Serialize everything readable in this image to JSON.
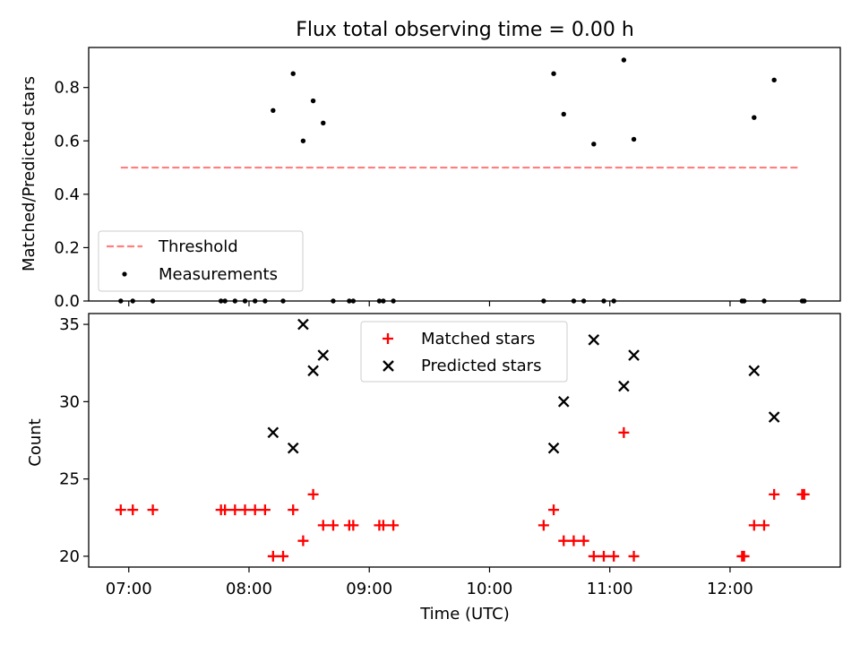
{
  "title": "Flux total observing time = 0.00 h",
  "chart_data": [
    {
      "type": "scatter",
      "ylabel": "Matched/Predicted stars",
      "xlabel": "",
      "x_unit": "hours UTC",
      "xlim": [
        "06:40",
        "12:55"
      ],
      "ylim": [
        0,
        0.95
      ],
      "y_ticks": [
        "0.0",
        "0.2",
        "0.4",
        "0.6",
        "0.8"
      ],
      "legend_position": "lower-left",
      "threshold": {
        "name": "Threshold",
        "value": 0.5,
        "x_range": [
          "06:56",
          "12:35"
        ],
        "color": "#ff7f7f",
        "style": "dashed"
      },
      "series": [
        {
          "name": "Measurements",
          "color": "#000000",
          "points": [
            [
              "06:56",
              0.0
            ],
            [
              "07:02",
              0.0
            ],
            [
              "07:12",
              0.0
            ],
            [
              "07:46",
              0.0
            ],
            [
              "07:48",
              0.0
            ],
            [
              "07:53",
              0.0
            ],
            [
              "07:58",
              0.0
            ],
            [
              "08:03",
              0.0
            ],
            [
              "08:08",
              0.0
            ],
            [
              "08:12",
              0.714
            ],
            [
              "08:17",
              0.0
            ],
            [
              "08:22",
              0.852
            ],
            [
              "08:27",
              0.6
            ],
            [
              "08:32",
              0.75
            ],
            [
              "08:37",
              0.667
            ],
            [
              "08:42",
              0.0
            ],
            [
              "08:50",
              0.0
            ],
            [
              "08:52",
              0.0
            ],
            [
              "09:05",
              0.0
            ],
            [
              "09:07",
              0.0
            ],
            [
              "09:12",
              0.0
            ],
            [
              "10:27",
              0.0
            ],
            [
              "10:32",
              0.852
            ],
            [
              "10:37",
              0.7
            ],
            [
              "10:42",
              0.0
            ],
            [
              "10:47",
              0.0
            ],
            [
              "10:52",
              0.588
            ],
            [
              "10:57",
              0.0
            ],
            [
              "11:02",
              0.0
            ],
            [
              "11:07",
              0.903
            ],
            [
              "11:12",
              0.606
            ],
            [
              "12:06",
              0.0
            ],
            [
              "12:07",
              0.0
            ],
            [
              "12:12",
              0.6875
            ],
            [
              "12:17",
              0.0
            ],
            [
              "12:22",
              0.828
            ],
            [
              "12:36",
              0.0
            ],
            [
              "12:37",
              0.0
            ]
          ]
        }
      ]
    },
    {
      "type": "scatter",
      "ylabel": "Count",
      "xlabel": "Time (UTC)",
      "x_unit": "hours UTC",
      "xlim": [
        "06:40",
        "12:55"
      ],
      "ylim": [
        19.3,
        35.7
      ],
      "y_ticks": [
        "20",
        "25",
        "30",
        "35"
      ],
      "x_ticks": [
        "07:00",
        "08:00",
        "09:00",
        "10:00",
        "11:00",
        "12:00"
      ],
      "legend_position": "upper-center",
      "series": [
        {
          "name": "Matched stars",
          "marker": "plus",
          "color": "#ff0000",
          "points": [
            [
              "06:56",
              23
            ],
            [
              "07:02",
              23
            ],
            [
              "07:12",
              23
            ],
            [
              "07:46",
              23
            ],
            [
              "07:48",
              23
            ],
            [
              "07:53",
              23
            ],
            [
              "07:58",
              23
            ],
            [
              "08:03",
              23
            ],
            [
              "08:08",
              23
            ],
            [
              "08:12",
              20
            ],
            [
              "08:17",
              20
            ],
            [
              "08:22",
              23
            ],
            [
              "08:27",
              21
            ],
            [
              "08:32",
              24
            ],
            [
              "08:37",
              22
            ],
            [
              "08:42",
              22
            ],
            [
              "08:50",
              22
            ],
            [
              "08:52",
              22
            ],
            [
              "09:05",
              22
            ],
            [
              "09:07",
              22
            ],
            [
              "09:12",
              22
            ],
            [
              "10:27",
              22
            ],
            [
              "10:32",
              23
            ],
            [
              "10:37",
              21
            ],
            [
              "10:42",
              21
            ],
            [
              "10:47",
              21
            ],
            [
              "10:52",
              20
            ],
            [
              "10:57",
              20
            ],
            [
              "11:02",
              20
            ],
            [
              "11:07",
              28
            ],
            [
              "11:12",
              20
            ],
            [
              "12:06",
              20
            ],
            [
              "12:07",
              20
            ],
            [
              "12:12",
              22
            ],
            [
              "12:17",
              22
            ],
            [
              "12:22",
              24
            ],
            [
              "12:36",
              24
            ],
            [
              "12:37",
              24
            ]
          ]
        },
        {
          "name": "Predicted stars",
          "marker": "x",
          "color": "#000000",
          "points": [
            [
              "08:12",
              28
            ],
            [
              "08:22",
              27
            ],
            [
              "08:27",
              35
            ],
            [
              "08:32",
              32
            ],
            [
              "08:37",
              33
            ],
            [
              "10:32",
              27
            ],
            [
              "10:37",
              30
            ],
            [
              "10:52",
              34
            ],
            [
              "11:07",
              31
            ],
            [
              "11:12",
              33
            ],
            [
              "12:12",
              32
            ],
            [
              "12:22",
              29
            ]
          ]
        }
      ]
    }
  ]
}
